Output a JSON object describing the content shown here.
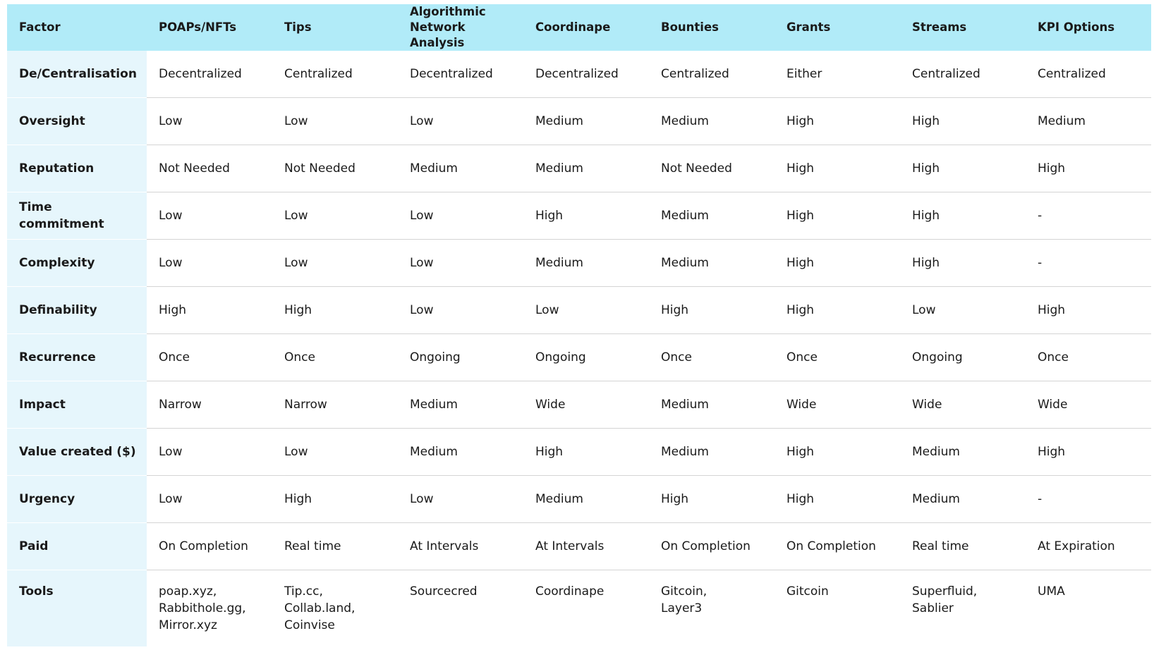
{
  "table": {
    "columns": [
      "Factor",
      "POAPs/NFTs",
      "Tips",
      "Algorithmic Network Analysis",
      "Coordinape",
      "Bounties",
      "Grants",
      "Streams",
      "KPI Options"
    ],
    "rows": [
      [
        "De/Centralisation",
        "Decentralized",
        "Centralized",
        "Decentralized",
        "Decentralized",
        "Centralized",
        "Either",
        "Centralized",
        "Centralized"
      ],
      [
        "Oversight",
        "Low",
        "Low",
        "Low",
        "Medium",
        "Medium",
        "High",
        "High",
        "Medium"
      ],
      [
        "Reputation",
        "Not Needed",
        "Not Needed",
        "Medium",
        "Medium",
        "Not Needed",
        "High",
        "High",
        "High"
      ],
      [
        "Time commitment",
        "Low",
        "Low",
        "Low",
        "High",
        "Medium",
        "High",
        "High",
        "-"
      ],
      [
        "Complexity",
        "Low",
        "Low",
        "Low",
        "Medium",
        "Medium",
        "High",
        "High",
        "-"
      ],
      [
        "Definability",
        "High",
        "High",
        "Low",
        "Low",
        "High",
        "High",
        "Low",
        "High"
      ],
      [
        "Recurrence",
        "Once",
        "Once",
        "Ongoing",
        "Ongoing",
        "Once",
        "Once",
        "Ongoing",
        "Once"
      ],
      [
        "Impact",
        "Narrow",
        "Narrow",
        "Medium",
        "Wide",
        "Medium",
        "Wide",
        "Wide",
        "Wide"
      ],
      [
        "Value created ($)",
        "Low",
        "Low",
        "Medium",
        "High",
        "Medium",
        "High",
        "Medium",
        "High"
      ],
      [
        "Urgency",
        "Low",
        "High",
        "Low",
        "Medium",
        "High",
        "High",
        "Medium",
        "-"
      ],
      [
        "Paid",
        "On Completion",
        "Real time",
        "At Intervals",
        "At Intervals",
        "On Completion",
        "On Completion",
        "Real time",
        "At Expiration"
      ],
      [
        "Tools",
        "poap.xyz,\nRabbithole.gg,\nMirror.xyz",
        "Tip.cc,\nCollab.land,\nCoinvise",
        "Sourcecred",
        "Coordinape",
        "Gitcoin,\nLayer3",
        "Gitcoin",
        "Superfluid,\nSablier",
        "UMA"
      ]
    ]
  }
}
